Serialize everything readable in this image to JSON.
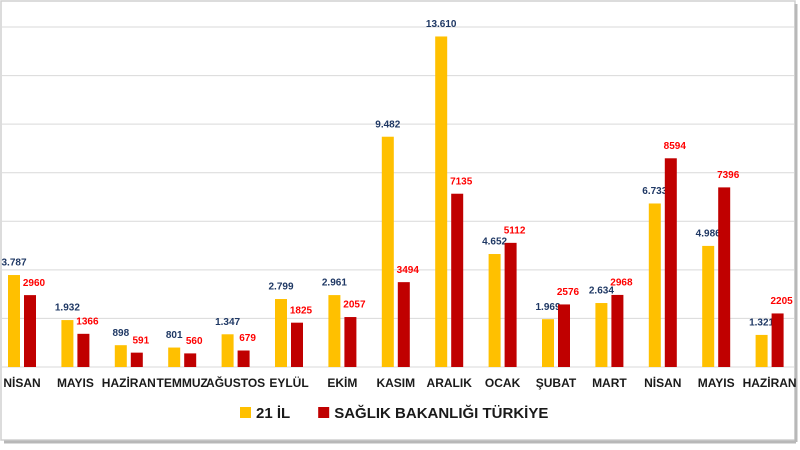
{
  "chart_data": {
    "type": "bar",
    "categories": [
      "NİSAN",
      "MAYIS",
      "HAZİRAN",
      "TEMMUZ",
      "AĞUSTOS",
      "EYLÜL",
      "EKİM",
      "KASIM",
      "ARALIK",
      "OCAK",
      "ŞUBAT",
      "MART",
      "NİSAN",
      "MAYIS",
      "HAZİRAN"
    ],
    "series": [
      {
        "name": "21 İL",
        "color": "#ffc000",
        "values": [
          3787,
          1932,
          898,
          801,
          1347,
          2799,
          2961,
          9482,
          13610,
          4652,
          1969,
          2634,
          6733,
          4986,
          1321
        ],
        "value_labels": [
          "3.787",
          "1.932",
          "898",
          "801",
          "1.347",
          "2.799",
          "2.961",
          "9.482",
          "13.610",
          "4.652",
          "1.969",
          "2.634",
          "6.733",
          "4.986",
          "1.321"
        ],
        "label_color": "#1f3864"
      },
      {
        "name": "SAĞLIK BAKANLIĞI TÜRKİYE",
        "color": "#c00000",
        "values": [
          2960,
          1366,
          591,
          560,
          679,
          1825,
          2057,
          3494,
          7135,
          5112,
          2576,
          2968,
          8594,
          7396,
          2205
        ],
        "label_color": "#ff0000"
      }
    ],
    "ylim": [
      0,
      14000
    ],
    "yticks": [
      0,
      2000,
      4000,
      6000,
      8000,
      10000,
      12000,
      14000
    ],
    "grid": true,
    "legend": "bottom"
  }
}
